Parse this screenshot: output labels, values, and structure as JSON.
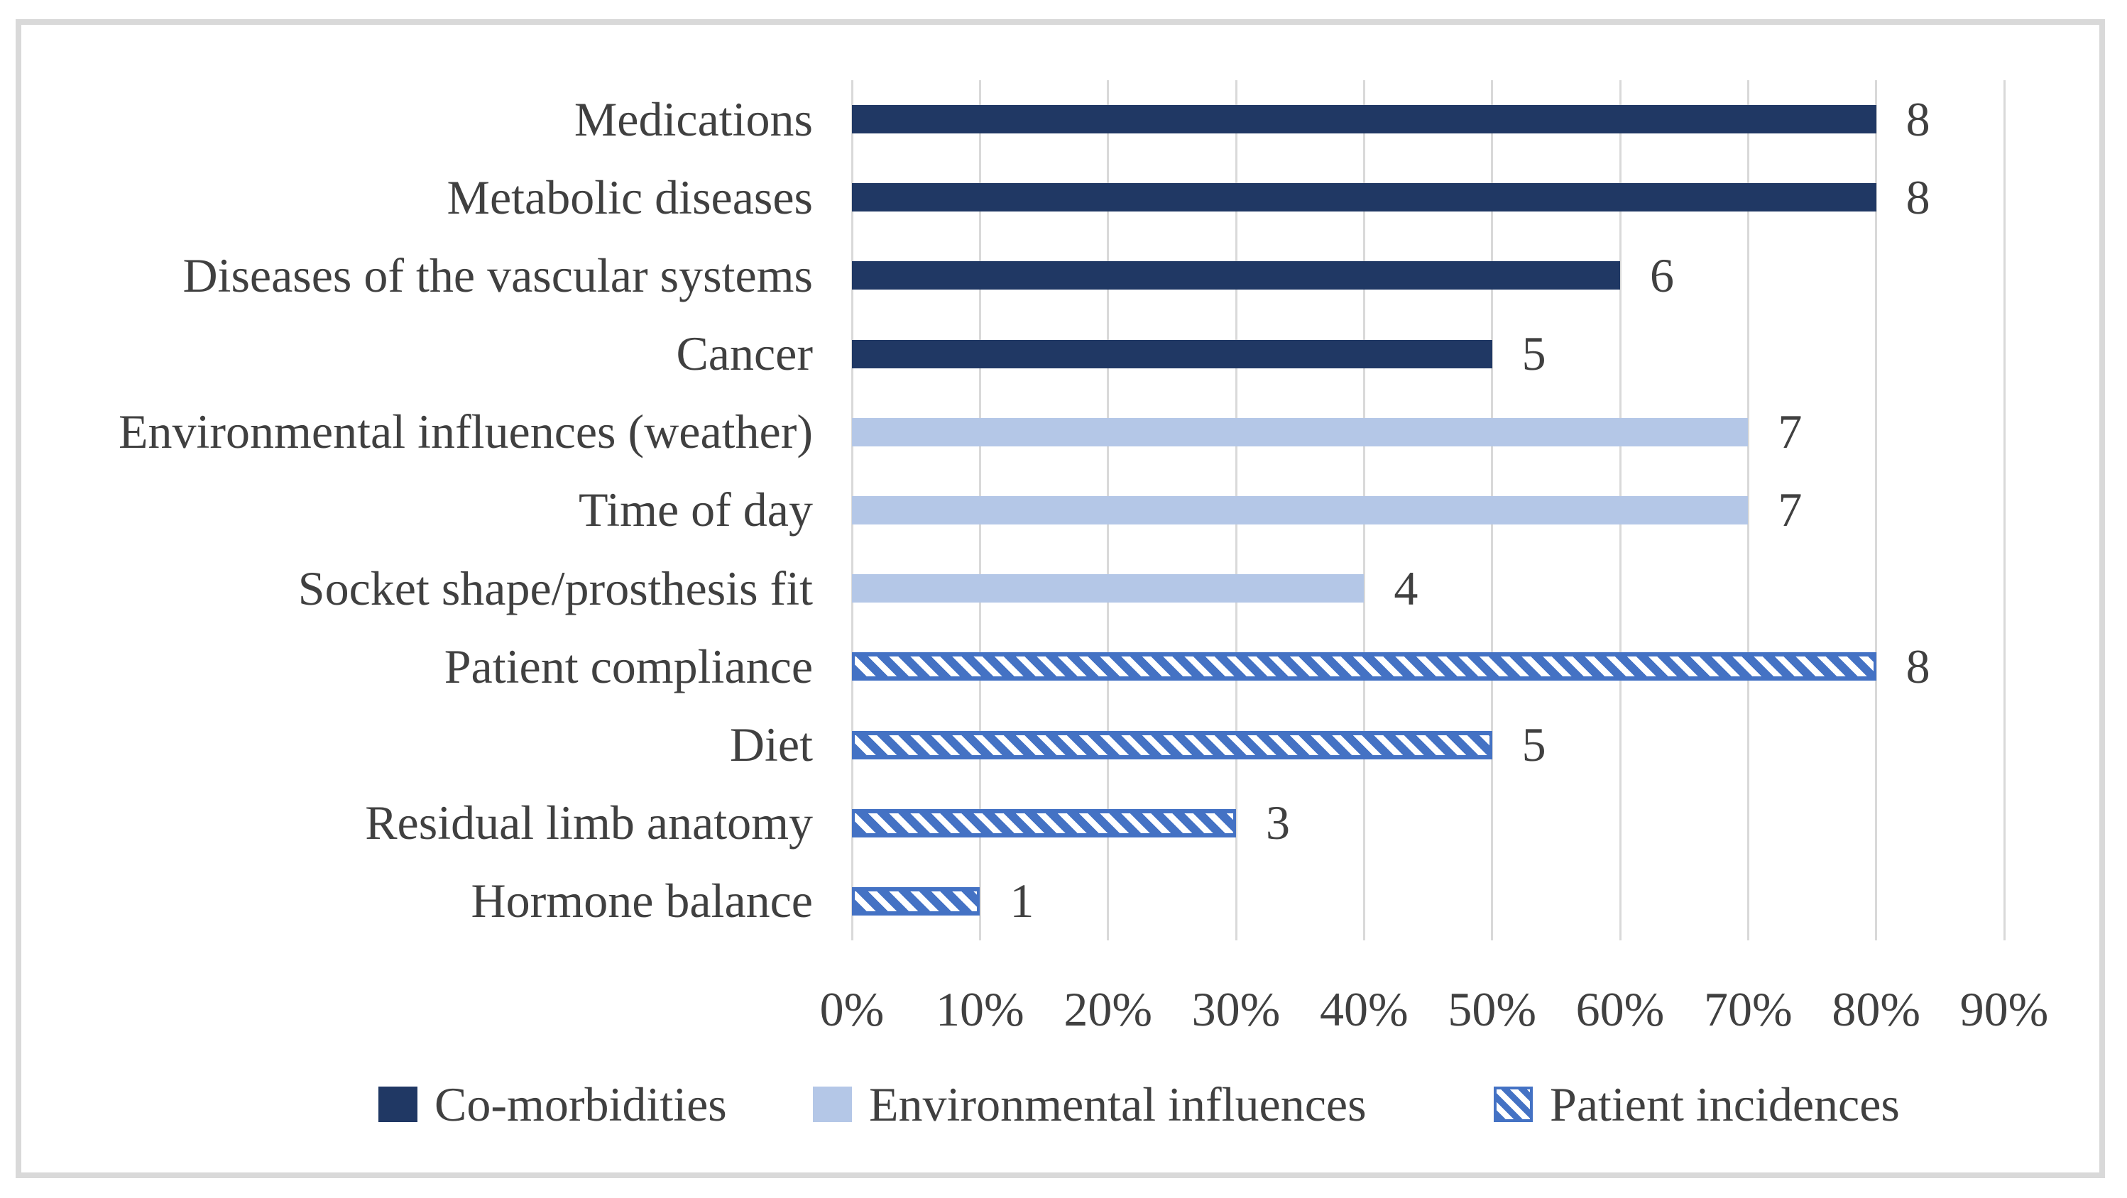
{
  "chart_data": {
    "type": "bar",
    "orientation": "horizontal",
    "title": "",
    "xlabel": "",
    "ylabel": "",
    "grid": true,
    "x_axis": {
      "unit": "%",
      "min": 0,
      "max": 90,
      "ticks": [
        "0%",
        "10%",
        "20%",
        "30%",
        "40%",
        "50%",
        "60%",
        "70%",
        "80%",
        "90%"
      ]
    },
    "bars": [
      {
        "category": "Medications",
        "series": "Co-morbidities",
        "style": "solid-dark",
        "percent": 80,
        "count_label": "8"
      },
      {
        "category": "Metabolic diseases",
        "series": "Co-morbidities",
        "style": "solid-dark",
        "percent": 80,
        "count_label": "8"
      },
      {
        "category": "Diseases of the vascular systems",
        "series": "Co-morbidities",
        "style": "solid-dark",
        "percent": 60,
        "count_label": "6"
      },
      {
        "category": "Cancer",
        "series": "Co-morbidities",
        "style": "solid-dark",
        "percent": 50,
        "count_label": "5"
      },
      {
        "category": "Environmental influences (weather)",
        "series": "Environmental influences",
        "style": "solid-light",
        "percent": 70,
        "count_label": "7"
      },
      {
        "category": "Time of day",
        "series": "Environmental influences",
        "style": "solid-light",
        "percent": 70,
        "count_label": "7"
      },
      {
        "category": "Socket shape/prosthesis fit",
        "series": "Environmental influences",
        "style": "solid-light",
        "percent": 40,
        "count_label": "4"
      },
      {
        "category": "Patient compliance",
        "series": "Patient incidences",
        "style": "hatched",
        "percent": 80,
        "count_label": "8"
      },
      {
        "category": "Diet",
        "series": "Patient incidences",
        "style": "hatched",
        "percent": 50,
        "count_label": "5"
      },
      {
        "category": "Residual limb anatomy",
        "series": "Patient incidences",
        "style": "hatched",
        "percent": 30,
        "count_label": "3"
      },
      {
        "category": "Hormone balance",
        "series": "Patient incidences",
        "style": "hatched",
        "percent": 10,
        "count_label": "1"
      }
    ],
    "legend": [
      {
        "label": "Co-morbidities",
        "style": "solid-dark"
      },
      {
        "label": "Environmental influences",
        "style": "solid-light"
      },
      {
        "label": "Patient incidences",
        "style": "hatched"
      }
    ],
    "legend_position": "bottom"
  },
  "colors": {
    "dark_navy": "#203864",
    "light_blue": "#B4C7E7",
    "hatch_blue": "#4472C4",
    "gridline": "#D9D9D9",
    "frame_border": "#D9D9D9",
    "text": "#404040",
    "background": "#FFFFFF"
  }
}
